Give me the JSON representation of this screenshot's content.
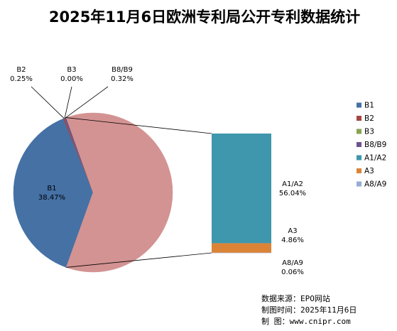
{
  "chart_data": {
    "type": "pie",
    "title": "2025年11月6日欧洲专利局公开专利数据统计",
    "slices": [
      {
        "name": "B1",
        "value": 38.47,
        "label": "38.47%",
        "color": "#4571a5"
      },
      {
        "name": "B2",
        "value": 0.25,
        "label": "0.25%",
        "color": "#a74443"
      },
      {
        "name": "B3",
        "value": 0.0,
        "label": "0.00%",
        "color": "#87a34d"
      },
      {
        "name": "B8/B9",
        "value": 0.32,
        "label": "0.32%",
        "color": "#6e538e"
      },
      {
        "name": "A1/A2",
        "value": 56.04,
        "label": "56.04%",
        "color": "#3e97ac"
      },
      {
        "name": "A3",
        "value": 4.86,
        "label": "4.86%",
        "color": "#db8436"
      },
      {
        "name": "A8/A9",
        "value": 0.06,
        "label": "0.06%",
        "color": "#96abd3"
      }
    ],
    "other_slice_color": "#d39392",
    "stacked_bar_breakdown": [
      "A1/A2",
      "A3",
      "A8/A9"
    ],
    "legend": [
      "B1",
      "B2",
      "B3",
      "B8/B9",
      "A1/A2",
      "A3",
      "A8/A9"
    ],
    "legend_position": "right"
  },
  "footer": {
    "source": "数据来源：EPO网站",
    "date": "制图时间：2025年11月6日",
    "maker": "制    图：www.cnipr.com"
  }
}
